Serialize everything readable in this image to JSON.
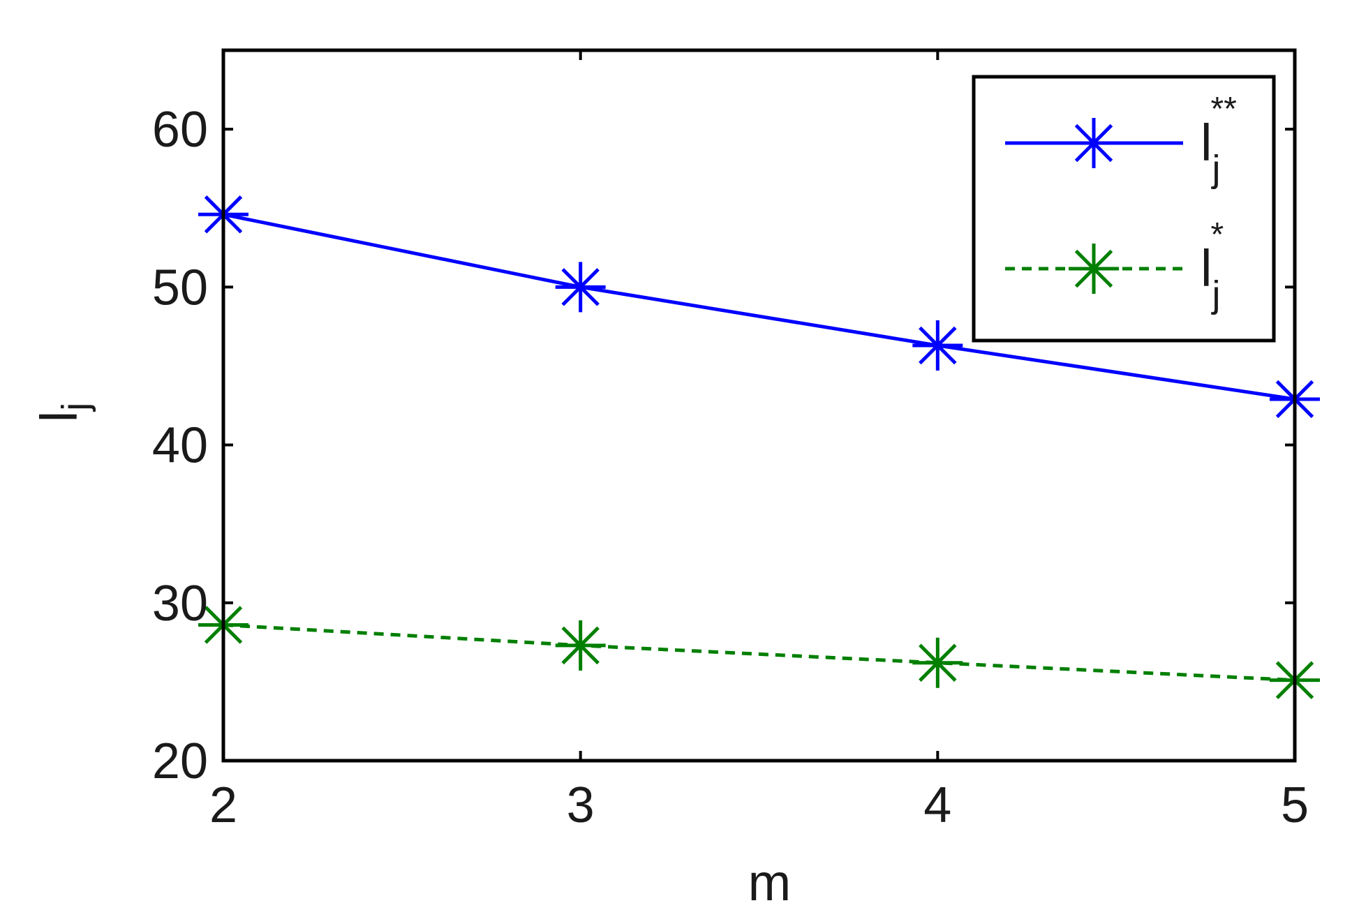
{
  "chart_data": {
    "type": "line",
    "title": "",
    "xlabel": "m",
    "ylabel": "l",
    "ylabel_sub": "j",
    "x": [
      2,
      3,
      4,
      5
    ],
    "xlim": [
      2,
      5
    ],
    "ylim": [
      20,
      65
    ],
    "xticks": [
      "2",
      "3",
      "4",
      "5"
    ],
    "yticks": [
      "20",
      "30",
      "40",
      "50",
      "60"
    ],
    "grid": false,
    "legend_position": "top-right",
    "series": [
      {
        "name": "l",
        "name_sub": "j",
        "name_sup": "**",
        "values": [
          54.6,
          50.0,
          46.3,
          42.9
        ],
        "color": "#0000ff",
        "line_style": "solid",
        "marker": "asterisk"
      },
      {
        "name": "l",
        "name_sub": "j",
        "name_sup": "*",
        "values": [
          28.6,
          27.3,
          26.2,
          25.1
        ],
        "color": "#007f00",
        "line_style": "dashed",
        "marker": "asterisk"
      }
    ]
  }
}
